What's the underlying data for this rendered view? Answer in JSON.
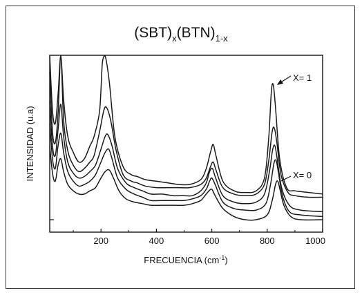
{
  "chart_data": {
    "type": "line",
    "title": "(SBT)x(BTN)1-x",
    "title_parts": {
      "a": "(SBT)",
      "sub_a": "x",
      "b": "(BTN)",
      "sub_b": "1-x"
    },
    "xlabel": "FRECUENCIA (cm-1)",
    "xlabel_parts": {
      "text": "FRECUENCIA (cm",
      "sup": "-1",
      "close": ")"
    },
    "ylabel": "INTENSIDAD (u.a)",
    "xlim": [
      15,
      1000
    ],
    "ylim": [
      0,
      100
    ],
    "xticks": [
      200,
      400,
      600,
      800,
      1000
    ],
    "yticks_labeled": false,
    "grid": false,
    "legend": "none",
    "annotations": [
      {
        "text": "X= 1",
        "x": 818,
        "y": 80
      },
      {
        "text": "X= 0",
        "x": 830,
        "y": 25
      }
    ],
    "series": [
      {
        "x": [
          15,
          25,
          35,
          45,
          55,
          65,
          80,
          100,
          120,
          140,
          160,
          175,
          195,
          205,
          215,
          230,
          250,
          280,
          310,
          330,
          360,
          400,
          440,
          480,
          520,
          560,
          580,
          595,
          605,
          615,
          640,
          680,
          720,
          760,
          790,
          805,
          815,
          822,
          830,
          845,
          870,
          900,
          950,
          1000
        ],
        "y": [
          105,
          68,
          60,
          78,
          105,
          75,
          52,
          42,
          36,
          38,
          46,
          52,
          68,
          98,
          105,
          86,
          52,
          33,
          28,
          27,
          25,
          24,
          23,
          22,
          22,
          25,
          32,
          42,
          47,
          40,
          24,
          18,
          17,
          18,
          26,
          50,
          80,
          84,
          70,
          38,
          20,
          18,
          17,
          16
        ]
      },
      {
        "x": [
          15,
          25,
          35,
          45,
          55,
          65,
          80,
          100,
          120,
          140,
          160,
          175,
          195,
          210,
          220,
          235,
          255,
          280,
          310,
          330,
          360,
          400,
          440,
          480,
          520,
          560,
          580,
          595,
          605,
          615,
          640,
          680,
          720,
          760,
          790,
          805,
          818,
          826,
          835,
          850,
          875,
          900,
          950,
          1000
        ],
        "y": [
          92,
          55,
          48,
          66,
          105,
          62,
          43,
          34,
          30,
          32,
          36,
          40,
          55,
          68,
          70,
          62,
          43,
          28,
          24,
          23,
          21,
          20,
          20,
          20,
          20,
          22,
          26,
          33,
          36,
          31,
          20,
          16,
          15,
          16,
          22,
          36,
          55,
          57,
          48,
          28,
          17,
          15,
          14,
          14
        ]
      },
      {
        "x": [
          15,
          25,
          35,
          45,
          55,
          65,
          80,
          100,
          120,
          140,
          160,
          180,
          200,
          215,
          225,
          240,
          260,
          290,
          320,
          350,
          380,
          420,
          460,
          500,
          530,
          560,
          580,
          592,
          602,
          612,
          640,
          680,
          720,
          760,
          790,
          808,
          820,
          828,
          836,
          852,
          880,
          920,
          1000
        ],
        "y": [
          74,
          46,
          40,
          56,
          72,
          52,
          36,
          29,
          26,
          27,
          30,
          34,
          44,
          52,
          53,
          46,
          32,
          23,
          20,
          18,
          16,
          16,
          15,
          15,
          15,
          18,
          23,
          30,
          32,
          27,
          15,
          11,
          10,
          11,
          16,
          30,
          44,
          46,
          38,
          20,
          9,
          6,
          5
        ]
      },
      {
        "x": [
          15,
          25,
          35,
          45,
          55,
          65,
          80,
          100,
          120,
          140,
          160,
          180,
          200,
          215,
          228,
          240,
          260,
          290,
          320,
          350,
          380,
          420,
          460,
          500,
          530,
          560,
          580,
          592,
          600,
          612,
          640,
          680,
          720,
          760,
          795,
          812,
          824,
          832,
          840,
          855,
          880,
          920,
          1000
        ],
        "y": [
          60,
          38,
          32,
          46,
          54,
          42,
          30,
          24,
          21,
          22,
          24,
          28,
          36,
          42,
          44,
          38,
          26,
          19,
          16,
          14,
          12,
          12,
          12,
          12,
          13,
          15,
          19,
          24,
          26,
          22,
          11,
          7,
          6,
          6,
          10,
          22,
          35,
          37,
          30,
          15,
          5,
          3,
          2
        ]
      },
      {
        "x": [
          15,
          25,
          35,
          45,
          55,
          65,
          80,
          100,
          120,
          140,
          160,
          180,
          200,
          215,
          230,
          245,
          265,
          290,
          320,
          350,
          380,
          420,
          460,
          500,
          530,
          560,
          575,
          590,
          600,
          612,
          640,
          680,
          720,
          760,
          800,
          818,
          830,
          838,
          846,
          860,
          885,
          920,
          1000
        ],
        "y": [
          46,
          29,
          24,
          34,
          38,
          30,
          22,
          18,
          16,
          16,
          18,
          20,
          26,
          30,
          31,
          26,
          18,
          13,
          11,
          10,
          9,
          9,
          9,
          9,
          10,
          12,
          15,
          18,
          19,
          15,
          7,
          2,
          0,
          0,
          3,
          12,
          22,
          24,
          19,
          9,
          2,
          0,
          0
        ]
      }
    ]
  }
}
